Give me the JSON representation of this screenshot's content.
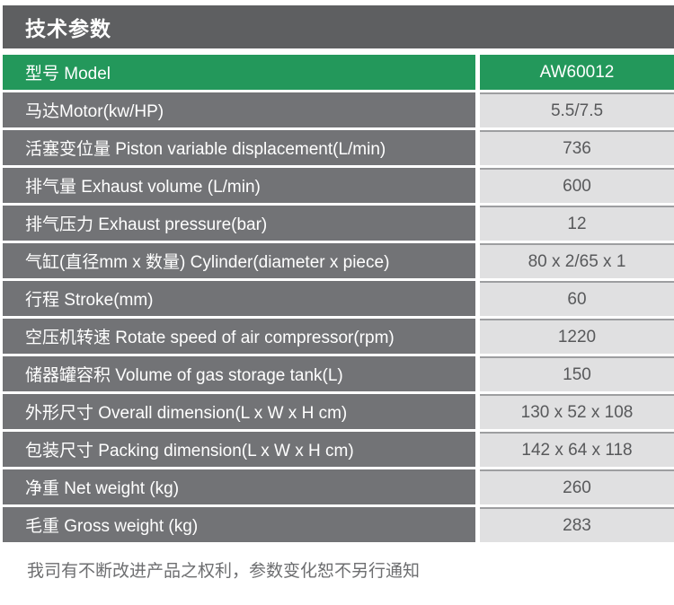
{
  "page": {
    "title": "技术参数",
    "footer_note": "我司有不断改进产品之权利，参数变化恕不另行通知"
  },
  "table": {
    "header": {
      "label": "型号 Model",
      "value": "AW60012"
    },
    "rows": [
      {
        "label": "马达Motor(kw/HP)",
        "value": "5.5/7.5"
      },
      {
        "label": "活塞变位量 Piston variable displacement(L/min)",
        "value": "736"
      },
      {
        "label": "排气量 Exhaust volume (L/min)",
        "value": "600"
      },
      {
        "label": "排气压力 Exhaust pressure(bar)",
        "value": "12"
      },
      {
        "label": "气缸(直径mm x 数量) Cylinder(diameter x piece)",
        "value": "80 x 2/65 x 1"
      },
      {
        "label": "行程 Stroke(mm)",
        "value": "60"
      },
      {
        "label": "空压机转速 Rotate speed of air compressor(rpm)",
        "value": "1220"
      },
      {
        "label": "储器罐容积 Volume of gas storage tank(L)",
        "value": "150"
      },
      {
        "label": "外形尺寸 Overall dimension(L x W x H cm)",
        "value": "130 x 52 x 108"
      },
      {
        "label": "包装尺寸 Packing dimension(L x W x H cm)",
        "value": "142 x 64 x 118"
      },
      {
        "label": "净重 Net weight (kg)",
        "value": "260"
      },
      {
        "label": "毛重 Gross weight (kg)",
        "value": "283"
      }
    ]
  },
  "colors": {
    "title_bar_bg": "#5e5f61",
    "header_row_bg": "#23985b",
    "label_cell_bg": "#727376",
    "value_cell_bg": "#e0e0e1",
    "value_text": "#58595b",
    "footer_text": "#6d6e70"
  }
}
